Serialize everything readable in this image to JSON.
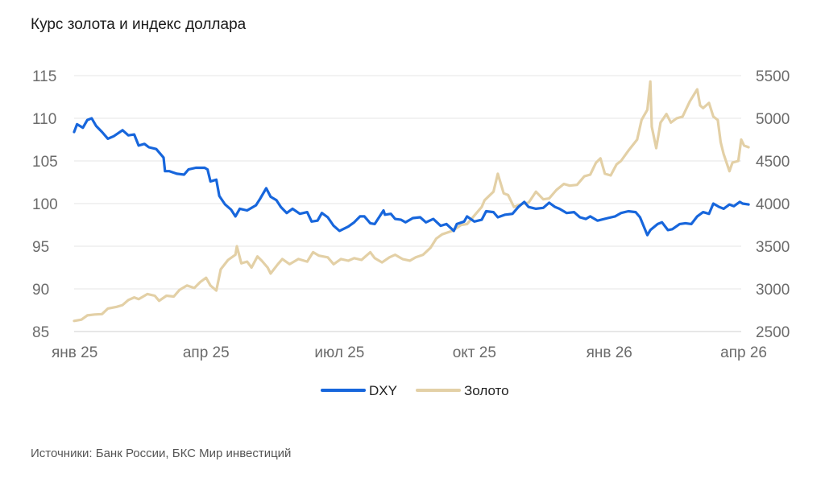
{
  "title": "Курс золота и индекс доллара",
  "source": "Источники: Банк России, БКС Мир инвестиций",
  "chart_data": {
    "type": "line",
    "title": "Курс золота и индекс доллара",
    "x_tick_labels": [
      "янв 25",
      "апр 25",
      "июл 25",
      "окт 25",
      "янв 26",
      "апр 26"
    ],
    "x_tick_dates": [
      "2025-01-01",
      "2025-04-01",
      "2025-07-01",
      "2025-10-01",
      "2026-01-01",
      "2026-04-01"
    ],
    "x_range": [
      "2025-01-01",
      "2026-04-01"
    ],
    "y_left": {
      "ticks": [
        85,
        90,
        95,
        100,
        105,
        110,
        115
      ],
      "range": [
        85,
        115
      ],
      "series": "DXY"
    },
    "y_right": {
      "ticks": [
        2500,
        3000,
        3500,
        4000,
        4500,
        5000,
        5500
      ],
      "range": [
        2500,
        5500
      ],
      "series": "Золото"
    },
    "grid": true,
    "legend": "bottom-center",
    "series": [
      {
        "name": "DXY",
        "axis": "left",
        "color": "#1766dc",
        "points": [
          [
            "2025-01-01",
            108.4
          ],
          [
            "2025-01-03",
            109.3
          ],
          [
            "2025-01-07",
            108.9
          ],
          [
            "2025-01-10",
            109.8
          ],
          [
            "2025-01-13",
            110.0
          ],
          [
            "2025-01-16",
            109.1
          ],
          [
            "2025-01-20",
            108.4
          ],
          [
            "2025-01-24",
            107.6
          ],
          [
            "2025-01-28",
            107.9
          ],
          [
            "2025-02-03",
            108.6
          ],
          [
            "2025-02-07",
            108.0
          ],
          [
            "2025-02-11",
            108.1
          ],
          [
            "2025-02-14",
            106.8
          ],
          [
            "2025-02-18",
            107.0
          ],
          [
            "2025-02-21",
            106.6
          ],
          [
            "2025-02-26",
            106.4
          ],
          [
            "2025-03-03",
            105.4
          ],
          [
            "2025-03-04",
            103.8
          ],
          [
            "2025-03-07",
            103.8
          ],
          [
            "2025-03-12",
            103.5
          ],
          [
            "2025-03-17",
            103.4
          ],
          [
            "2025-03-20",
            104.0
          ],
          [
            "2025-03-25",
            104.2
          ],
          [
            "2025-03-31",
            104.2
          ],
          [
            "2025-04-02",
            104.0
          ],
          [
            "2025-04-04",
            102.6
          ],
          [
            "2025-04-08",
            102.8
          ],
          [
            "2025-04-10",
            100.9
          ],
          [
            "2025-04-14",
            99.9
          ],
          [
            "2025-04-18",
            99.3
          ],
          [
            "2025-04-21",
            98.5
          ],
          [
            "2025-04-24",
            99.4
          ],
          [
            "2025-04-29",
            99.2
          ],
          [
            "2025-05-05",
            99.8
          ],
          [
            "2025-05-08",
            100.6
          ],
          [
            "2025-05-12",
            101.8
          ],
          [
            "2025-05-15",
            100.8
          ],
          [
            "2025-05-19",
            100.4
          ],
          [
            "2025-05-22",
            99.6
          ],
          [
            "2025-05-26",
            98.9
          ],
          [
            "2025-05-30",
            99.4
          ],
          [
            "2025-06-04",
            98.8
          ],
          [
            "2025-06-09",
            99.0
          ],
          [
            "2025-06-12",
            97.9
          ],
          [
            "2025-06-16",
            98.0
          ],
          [
            "2025-06-19",
            98.9
          ],
          [
            "2025-06-23",
            98.4
          ],
          [
            "2025-06-27",
            97.4
          ],
          [
            "2025-07-01",
            96.8
          ],
          [
            "2025-07-07",
            97.3
          ],
          [
            "2025-07-11",
            97.8
          ],
          [
            "2025-07-15",
            98.5
          ],
          [
            "2025-07-18",
            98.5
          ],
          [
            "2025-07-22",
            97.7
          ],
          [
            "2025-07-25",
            97.6
          ],
          [
            "2025-07-31",
            99.2
          ],
          [
            "2025-08-01",
            98.7
          ],
          [
            "2025-08-05",
            98.8
          ],
          [
            "2025-08-08",
            98.2
          ],
          [
            "2025-08-12",
            98.1
          ],
          [
            "2025-08-15",
            97.8
          ],
          [
            "2025-08-20",
            98.3
          ],
          [
            "2025-08-25",
            98.4
          ],
          [
            "2025-08-29",
            97.8
          ],
          [
            "2025-09-03",
            98.2
          ],
          [
            "2025-09-08",
            97.4
          ],
          [
            "2025-09-12",
            97.6
          ],
          [
            "2025-09-17",
            96.8
          ],
          [
            "2025-09-19",
            97.6
          ],
          [
            "2025-09-24",
            97.9
          ],
          [
            "2025-09-26",
            98.5
          ],
          [
            "2025-10-01",
            97.9
          ],
          [
            "2025-10-06",
            98.1
          ],
          [
            "2025-10-09",
            99.1
          ],
          [
            "2025-10-14",
            99.0
          ],
          [
            "2025-10-17",
            98.4
          ],
          [
            "2025-10-22",
            98.7
          ],
          [
            "2025-10-27",
            98.8
          ],
          [
            "2025-10-31",
            99.6
          ],
          [
            "2025-11-04",
            100.2
          ],
          [
            "2025-11-07",
            99.6
          ],
          [
            "2025-11-12",
            99.4
          ],
          [
            "2025-11-17",
            99.5
          ],
          [
            "2025-11-21",
            100.1
          ],
          [
            "2025-11-25",
            99.6
          ],
          [
            "2025-11-28",
            99.4
          ],
          [
            "2025-12-03",
            98.9
          ],
          [
            "2025-12-08",
            99.0
          ],
          [
            "2025-12-12",
            98.4
          ],
          [
            "2025-12-16",
            98.2
          ],
          [
            "2025-12-19",
            98.5
          ],
          [
            "2025-12-24",
            98.0
          ],
          [
            "2025-12-31",
            98.3
          ],
          [
            "2026-01-05",
            98.5
          ],
          [
            "2026-01-09",
            98.9
          ],
          [
            "2026-01-14",
            99.1
          ],
          [
            "2026-01-19",
            99.0
          ],
          [
            "2026-01-22",
            98.4
          ],
          [
            "2026-01-27",
            96.3
          ],
          [
            "2026-01-29",
            96.9
          ],
          [
            "2026-02-03",
            97.6
          ],
          [
            "2026-02-06",
            97.8
          ],
          [
            "2026-02-10",
            96.9
          ],
          [
            "2026-02-13",
            97.0
          ],
          [
            "2026-02-18",
            97.6
          ],
          [
            "2026-02-22",
            97.7
          ],
          [
            "2026-02-26",
            97.6
          ],
          [
            "2026-03-02",
            98.5
          ],
          [
            "2026-03-06",
            99.0
          ],
          [
            "2026-03-10",
            98.8
          ],
          [
            "2026-03-13",
            100.0
          ],
          [
            "2026-03-17",
            99.6
          ],
          [
            "2026-03-20",
            99.4
          ],
          [
            "2026-03-24",
            99.9
          ],
          [
            "2026-03-27",
            99.7
          ],
          [
            "2026-03-31",
            100.2
          ],
          [
            "2026-04-02",
            100.0
          ],
          [
            "2026-04-06",
            99.9
          ]
        ]
      },
      {
        "name": "Золото",
        "axis": "right",
        "color": "#e3d0a6",
        "points": [
          [
            "2025-01-01",
            2625
          ],
          [
            "2025-01-06",
            2640
          ],
          [
            "2025-01-10",
            2690
          ],
          [
            "2025-01-15",
            2700
          ],
          [
            "2025-01-20",
            2705
          ],
          [
            "2025-01-24",
            2770
          ],
          [
            "2025-01-30",
            2790
          ],
          [
            "2025-02-03",
            2810
          ],
          [
            "2025-02-07",
            2870
          ],
          [
            "2025-02-11",
            2900
          ],
          [
            "2025-02-14",
            2880
          ],
          [
            "2025-02-20",
            2940
          ],
          [
            "2025-02-25",
            2920
          ],
          [
            "2025-02-28",
            2860
          ],
          [
            "2025-03-05",
            2920
          ],
          [
            "2025-03-10",
            2910
          ],
          [
            "2025-03-14",
            2990
          ],
          [
            "2025-03-19",
            3040
          ],
          [
            "2025-03-24",
            3010
          ],
          [
            "2025-03-28",
            3080
          ],
          [
            "2025-04-01",
            3130
          ],
          [
            "2025-04-04",
            3040
          ],
          [
            "2025-04-08",
            2980
          ],
          [
            "2025-04-11",
            3230
          ],
          [
            "2025-04-16",
            3340
          ],
          [
            "2025-04-21",
            3400
          ],
          [
            "2025-04-22",
            3500
          ],
          [
            "2025-04-25",
            3300
          ],
          [
            "2025-04-29",
            3320
          ],
          [
            "2025-05-02",
            3250
          ],
          [
            "2025-05-06",
            3380
          ],
          [
            "2025-05-09",
            3330
          ],
          [
            "2025-05-13",
            3250
          ],
          [
            "2025-05-15",
            3180
          ],
          [
            "2025-05-20",
            3290
          ],
          [
            "2025-05-23",
            3350
          ],
          [
            "2025-05-28",
            3290
          ],
          [
            "2025-06-03",
            3350
          ],
          [
            "2025-06-09",
            3320
          ],
          [
            "2025-06-13",
            3430
          ],
          [
            "2025-06-17",
            3390
          ],
          [
            "2025-06-23",
            3370
          ],
          [
            "2025-06-27",
            3290
          ],
          [
            "2025-07-02",
            3350
          ],
          [
            "2025-07-07",
            3330
          ],
          [
            "2025-07-11",
            3360
          ],
          [
            "2025-07-16",
            3340
          ],
          [
            "2025-07-22",
            3430
          ],
          [
            "2025-07-25",
            3360
          ],
          [
            "2025-07-30",
            3310
          ],
          [
            "2025-08-04",
            3370
          ],
          [
            "2025-08-08",
            3400
          ],
          [
            "2025-08-13",
            3350
          ],
          [
            "2025-08-18",
            3330
          ],
          [
            "2025-08-22",
            3370
          ],
          [
            "2025-08-27",
            3400
          ],
          [
            "2025-09-01",
            3480
          ],
          [
            "2025-09-05",
            3590
          ],
          [
            "2025-09-09",
            3640
          ],
          [
            "2025-09-16",
            3680
          ],
          [
            "2025-09-22",
            3750
          ],
          [
            "2025-09-26",
            3760
          ],
          [
            "2025-10-01",
            3860
          ],
          [
            "2025-10-06",
            3960
          ],
          [
            "2025-10-08",
            4040
          ],
          [
            "2025-10-14",
            4140
          ],
          [
            "2025-10-17",
            4350
          ],
          [
            "2025-10-21",
            4120
          ],
          [
            "2025-10-24",
            4100
          ],
          [
            "2025-10-28",
            3960
          ],
          [
            "2025-11-03",
            4000
          ],
          [
            "2025-11-07",
            4010
          ],
          [
            "2025-11-12",
            4140
          ],
          [
            "2025-11-17",
            4050
          ],
          [
            "2025-11-21",
            4060
          ],
          [
            "2025-11-26",
            4160
          ],
          [
            "2025-12-01",
            4230
          ],
          [
            "2025-12-05",
            4210
          ],
          [
            "2025-12-10",
            4220
          ],
          [
            "2025-12-15",
            4320
          ],
          [
            "2025-12-19",
            4340
          ],
          [
            "2025-12-23",
            4480
          ],
          [
            "2025-12-26",
            4530
          ],
          [
            "2025-12-29",
            4350
          ],
          [
            "2026-01-02",
            4330
          ],
          [
            "2026-01-06",
            4460
          ],
          [
            "2026-01-09",
            4500
          ],
          [
            "2026-01-14",
            4620
          ],
          [
            "2026-01-20",
            4750
          ],
          [
            "2026-01-23",
            4980
          ],
          [
            "2026-01-27",
            5100
          ],
          [
            "2026-01-29",
            5430
          ],
          [
            "2026-01-30",
            4900
          ],
          [
            "2026-02-02",
            4650
          ],
          [
            "2026-02-05",
            4950
          ],
          [
            "2026-02-09",
            5050
          ],
          [
            "2026-02-12",
            4950
          ],
          [
            "2026-02-16",
            5000
          ],
          [
            "2026-02-20",
            5020
          ],
          [
            "2026-02-25",
            5200
          ],
          [
            "2026-03-02",
            5340
          ],
          [
            "2026-03-04",
            5150
          ],
          [
            "2026-03-06",
            5120
          ],
          [
            "2026-03-10",
            5180
          ],
          [
            "2026-03-13",
            5020
          ],
          [
            "2026-03-16",
            4980
          ],
          [
            "2026-03-18",
            4720
          ],
          [
            "2026-03-20",
            4580
          ],
          [
            "2026-03-24",
            4380
          ],
          [
            "2026-03-26",
            4480
          ],
          [
            "2026-03-30",
            4500
          ],
          [
            "2026-04-01",
            4750
          ],
          [
            "2026-04-03",
            4680
          ],
          [
            "2026-04-06",
            4660
          ]
        ]
      }
    ]
  }
}
